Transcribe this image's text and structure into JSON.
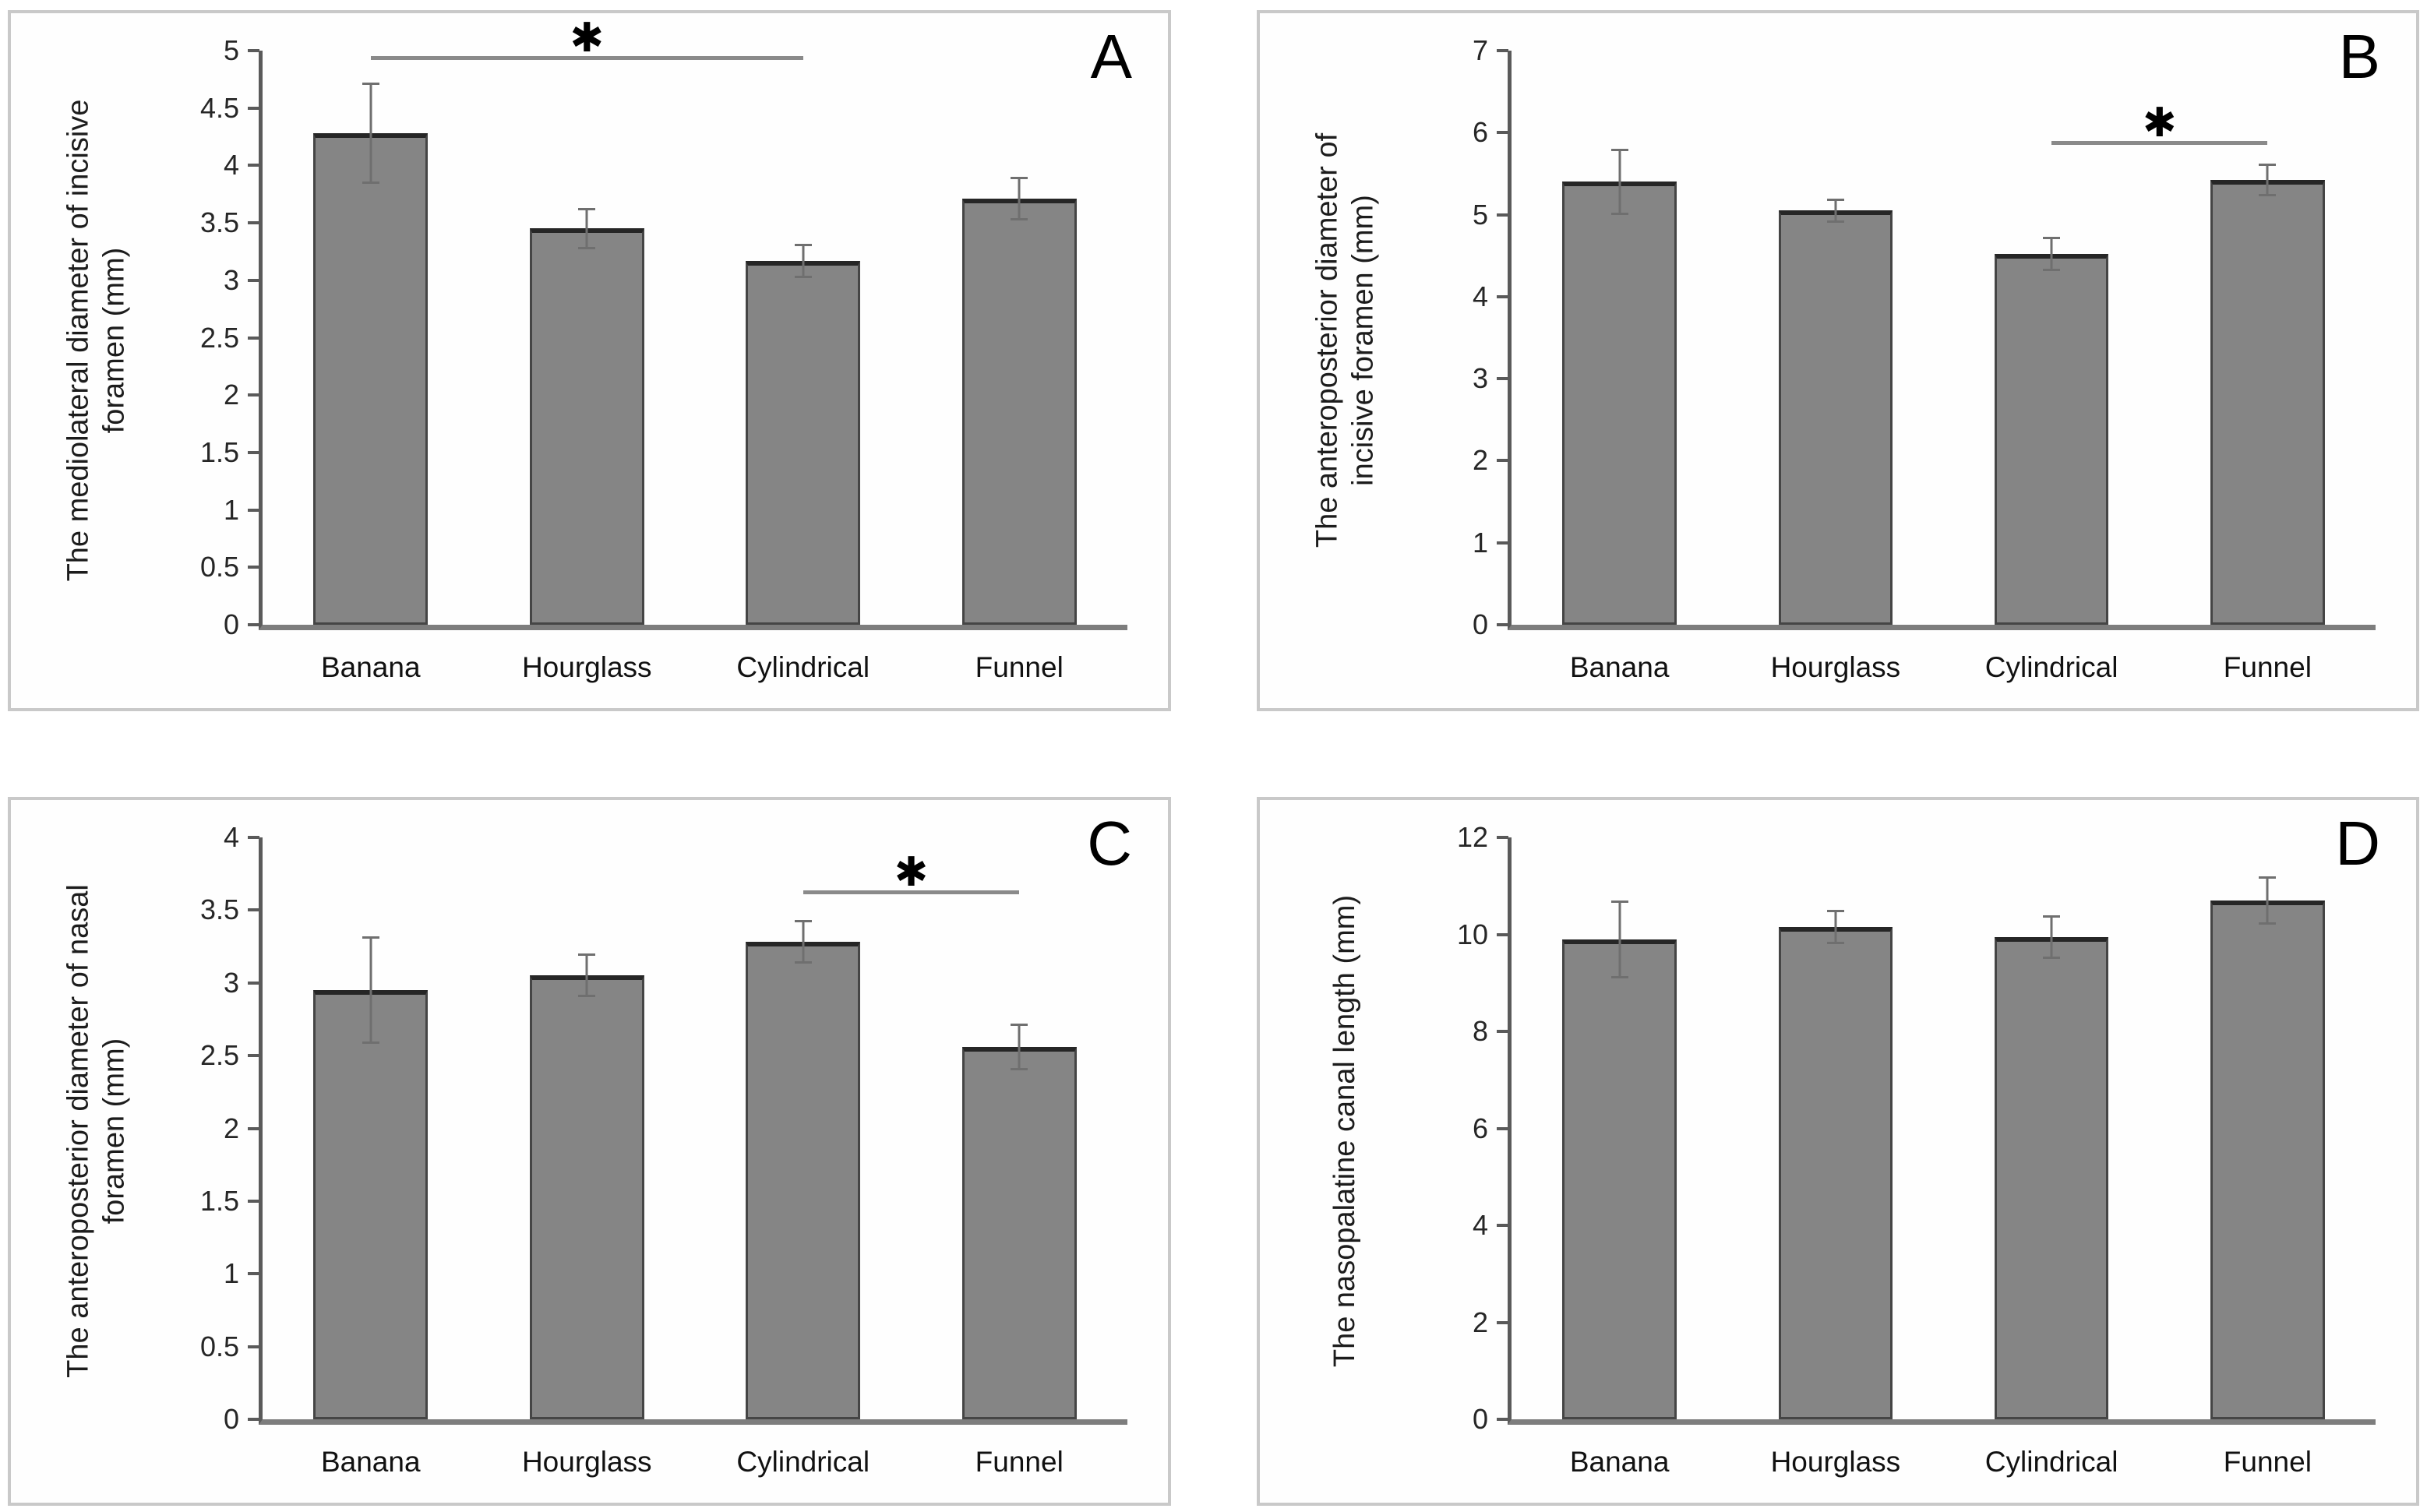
{
  "figure": {
    "background": "#ffffff",
    "panel_border_color": "#c9c9c9",
    "bar_fill_color": "#858585",
    "bar_edge_color": "#454545",
    "axis_color": "#5a5a5a",
    "error_bar_color": "#6f6f6f",
    "significance_line_color": "#8a8a8a"
  },
  "chart_data": [
    {
      "type": "bar",
      "panel_label": "A",
      "title": "",
      "xlabel": "",
      "ylabel": "The mediolateral diameter of incisive foramen (mm)",
      "ylabel_lines": [
        "The mediolateral diameter of incisive",
        "foramen (mm)"
      ],
      "categories": [
        "Banana",
        "Hourglass",
        "Cylindrical",
        "Funnel"
      ],
      "values": [
        4.28,
        3.45,
        3.17,
        3.71
      ],
      "error_bars": [
        0.44,
        0.18,
        0.15,
        0.19
      ],
      "ylim": [
        0,
        5
      ],
      "ytick_labels": [
        "0",
        "0.5",
        "1",
        "1.5",
        "2",
        "2.5",
        "3",
        "3.5",
        "4",
        "4.5",
        "5"
      ],
      "grid": false,
      "legend": null,
      "significance": {
        "between": [
          "Banana",
          "Cylindrical"
        ],
        "from_index": 0,
        "to_index": 2,
        "line_y": 4.92,
        "marker": "✱"
      }
    },
    {
      "type": "bar",
      "panel_label": "B",
      "title": "",
      "xlabel": "",
      "ylabel": "The anteroposterior diameter of incisive foramen (mm)",
      "ylabel_lines": [
        "The anteroposterior diameter of",
        "incisive foramen (mm)"
      ],
      "categories": [
        "Banana",
        "Hourglass",
        "Cylindrical",
        "Funnel"
      ],
      "values": [
        5.4,
        5.05,
        4.52,
        5.42
      ],
      "error_bars": [
        0.4,
        0.15,
        0.21,
        0.2
      ],
      "ylim": [
        0,
        7
      ],
      "ytick_labels": [
        "0",
        "1",
        "2",
        "3",
        "4",
        "5",
        "6",
        "7"
      ],
      "grid": false,
      "legend": null,
      "significance": {
        "between": [
          "Cylindrical",
          "Funnel"
        ],
        "from_index": 2,
        "to_index": 3,
        "line_y": 5.85,
        "marker": "✱"
      }
    },
    {
      "type": "bar",
      "panel_label": "C",
      "title": "",
      "xlabel": "",
      "ylabel": "The anteroposterior diameter of nasal foramen (mm)",
      "ylabel_lines": [
        "The anteroposterior diameter of nasal",
        "foramen (mm)"
      ],
      "categories": [
        "Banana",
        "Hourglass",
        "Cylindrical",
        "Funnel"
      ],
      "values": [
        2.95,
        3.05,
        3.28,
        2.56
      ],
      "error_bars": [
        0.37,
        0.15,
        0.15,
        0.16
      ],
      "ylim": [
        0,
        4
      ],
      "ytick_labels": [
        "0",
        "0.5",
        "1",
        "1.5",
        "2",
        "2.5",
        "3",
        "3.5",
        "4"
      ],
      "grid": false,
      "legend": null,
      "significance": {
        "between": [
          "Cylindrical",
          "Funnel"
        ],
        "from_index": 2,
        "to_index": 3,
        "line_y": 3.61,
        "marker": "✱"
      }
    },
    {
      "type": "bar",
      "panel_label": "D",
      "title": "",
      "xlabel": "",
      "ylabel": "The nasopalatine canal length (mm)",
      "ylabel_lines": [
        "The nasopalatine canal length (mm)"
      ],
      "categories": [
        "Banana",
        "Hourglass",
        "Cylindrical",
        "Funnel"
      ],
      "values": [
        9.9,
        10.15,
        9.95,
        10.7
      ],
      "error_bars": [
        0.8,
        0.35,
        0.45,
        0.5
      ],
      "ylim": [
        0,
        12
      ],
      "ytick_labels": [
        "0",
        "2",
        "4",
        "6",
        "8",
        "10",
        "12"
      ],
      "grid": false,
      "legend": null,
      "significance": null
    }
  ]
}
